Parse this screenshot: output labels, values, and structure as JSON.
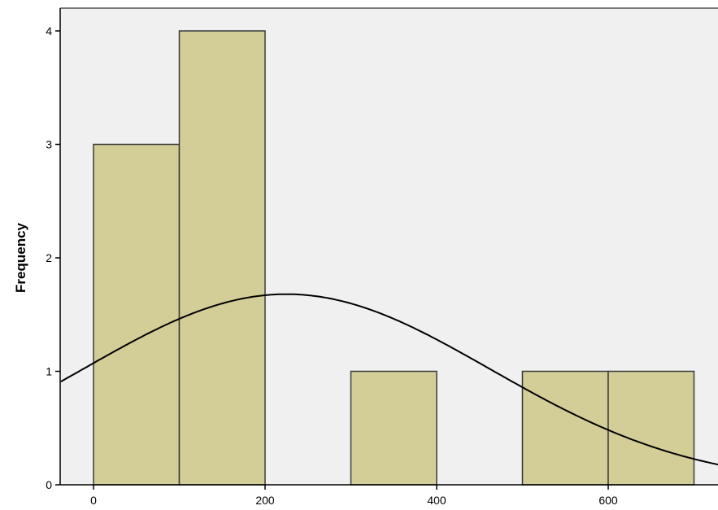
{
  "chart_data": {
    "type": "bar",
    "subtype": "histogram",
    "title": "",
    "xlabel": "",
    "ylabel": "Frequency",
    "xlim": [
      -40,
      730
    ],
    "ylim": [
      0,
      4.2
    ],
    "bin_width": 100,
    "bins": [
      {
        "x0": 0,
        "x1": 100,
        "count": 3
      },
      {
        "x0": 100,
        "x1": 200,
        "count": 4
      },
      {
        "x0": 300,
        "x1": 400,
        "count": 1
      },
      {
        "x0": 500,
        "x1": 600,
        "count": 1
      },
      {
        "x0": 600,
        "x1": 700,
        "count": 1
      }
    ],
    "x_ticks": [
      "0",
      "200",
      "400",
      "600"
    ],
    "x_tick_values": [
      0,
      200,
      400,
      600
    ],
    "y_ticks": [
      "0",
      "1",
      "2",
      "3",
      "4"
    ],
    "y_tick_values": [
      0,
      1,
      2,
      3,
      4
    ],
    "normal_curve": {
      "mean": 225,
      "sd": 237.5,
      "n": 10
    },
    "grid": false,
    "legend": "none",
    "colors": {
      "plot_background": "#f0f0f0",
      "bar_fill": "#d3ce97",
      "bar_stroke": "#3a3a3a",
      "curve": "#000000"
    }
  }
}
